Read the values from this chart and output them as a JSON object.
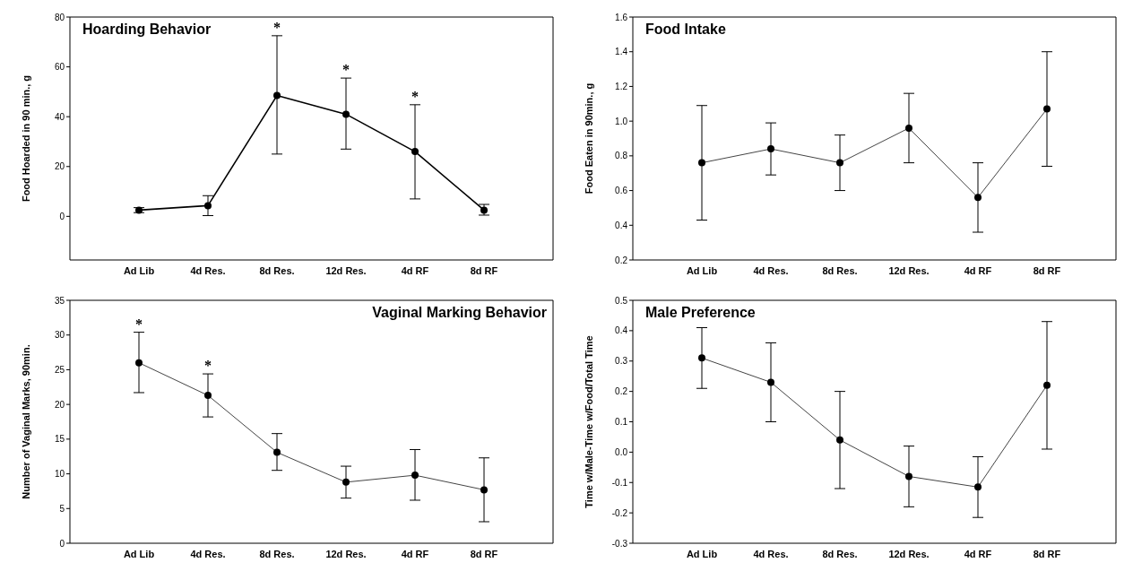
{
  "chart_data": [
    {
      "type": "line",
      "title": "Hoarding Behavior",
      "ylabel": "Food Hoarded in 90 min., g",
      "categories": [
        "Ad Lib",
        "4d Res.",
        "8d Res.",
        "12d Res.",
        "4d RF",
        "8d RF"
      ],
      "values": [
        2.5,
        4.3,
        48.5,
        41,
        26,
        2.5
      ],
      "errors": [
        1,
        4,
        [
          25,
          72.5
        ],
        [
          27,
          55.5
        ],
        [
          7,
          44.8
        ],
        [
          0.5,
          4.8
        ]
      ],
      "color": "#000000",
      "marker": "circle",
      "ylim": [
        -17.5,
        80
      ],
      "yticks": [
        0,
        20,
        40,
        60,
        80
      ],
      "annotations": [
        {
          "text": "*",
          "x": "8d Res.",
          "y": 72.5
        },
        {
          "text": "*",
          "x": "12d Res.",
          "y": 55.5
        },
        {
          "text": "*",
          "x": "4d RF",
          "y": 44.8
        }
      ]
    },
    {
      "type": "line",
      "title": "Food Intake",
      "ylabel": "Food Eaten in 90min., g",
      "categories": [
        "Ad Lib",
        "4d Res.",
        "8d Res.",
        "12d Res.",
        "4d RF",
        "8d RF"
      ],
      "values": [
        0.76,
        0.84,
        0.76,
        0.96,
        0.56,
        1.07
      ],
      "errors": [
        [
          0.43,
          1.09
        ],
        [
          0.69,
          0.99
        ],
        [
          0.6,
          0.92
        ],
        [
          0.76,
          1.16
        ],
        [
          0.36,
          0.76
        ],
        [
          0.74,
          1.4
        ]
      ],
      "color": "#444444",
      "marker": "circle",
      "ylim": [
        0.2,
        1.6
      ],
      "yticks": [
        0.2,
        0.4,
        0.6,
        0.8,
        {
          "value": 1,
          "label": "1.0"
        },
        1.2,
        1.4,
        1.6
      ]
    },
    {
      "type": "line",
      "title": "Vaginal Marking Behavior",
      "ylabel": "Number of Vaginal Marks, 90min.",
      "categories": [
        "Ad Lib",
        "4d Res.",
        "8d Res.",
        "12d Res.",
        "4d RF",
        "8d RF"
      ],
      "values": [
        26,
        21.3,
        13.1,
        8.8,
        9.8,
        7.7
      ],
      "errors": [
        [
          21.7,
          30.4
        ],
        [
          18.2,
          24.4
        ],
        [
          10.5,
          15.8
        ],
        [
          6.5,
          11.1
        ],
        [
          6.2,
          13.5
        ],
        [
          3.1,
          12.3
        ]
      ],
      "color": "#444444",
      "marker": "circle",
      "ylim": [
        0,
        35
      ],
      "yticks": [
        0,
        5,
        10,
        15,
        20,
        25,
        30,
        35
      ],
      "annotations": [
        {
          "text": "*",
          "x": "Ad Lib",
          "y": 30.4
        },
        {
          "text": "*",
          "x": "4d Res.",
          "y": 24.4
        }
      ]
    },
    {
      "type": "line",
      "title": "Male Preference",
      "ylabel": "Time w/Male-Time w/Food/Total Time",
      "categories": [
        "Ad Lib",
        "4d Res.",
        "8d Res.",
        "12d Res.",
        "4d RF",
        "8d RF"
      ],
      "values": [
        0.31,
        0.23,
        0.04,
        -0.08,
        -0.115,
        0.22
      ],
      "errors": [
        [
          0.21,
          0.41
        ],
        [
          0.1,
          0.36
        ],
        [
          -0.12,
          0.2
        ],
        [
          -0.18,
          0.02
        ],
        [
          -0.215,
          -0.015
        ],
        [
          0.01,
          0.43
        ]
      ],
      "color": "#444444",
      "marker": "circle",
      "ylim": [
        -0.3,
        0.5
      ],
      "yticks": [
        -0.3,
        -0.2,
        -0.1,
        {
          "value": 0,
          "label": "0.0"
        },
        0.1,
        0.2,
        0.3,
        0.4,
        0.5
      ]
    }
  ]
}
